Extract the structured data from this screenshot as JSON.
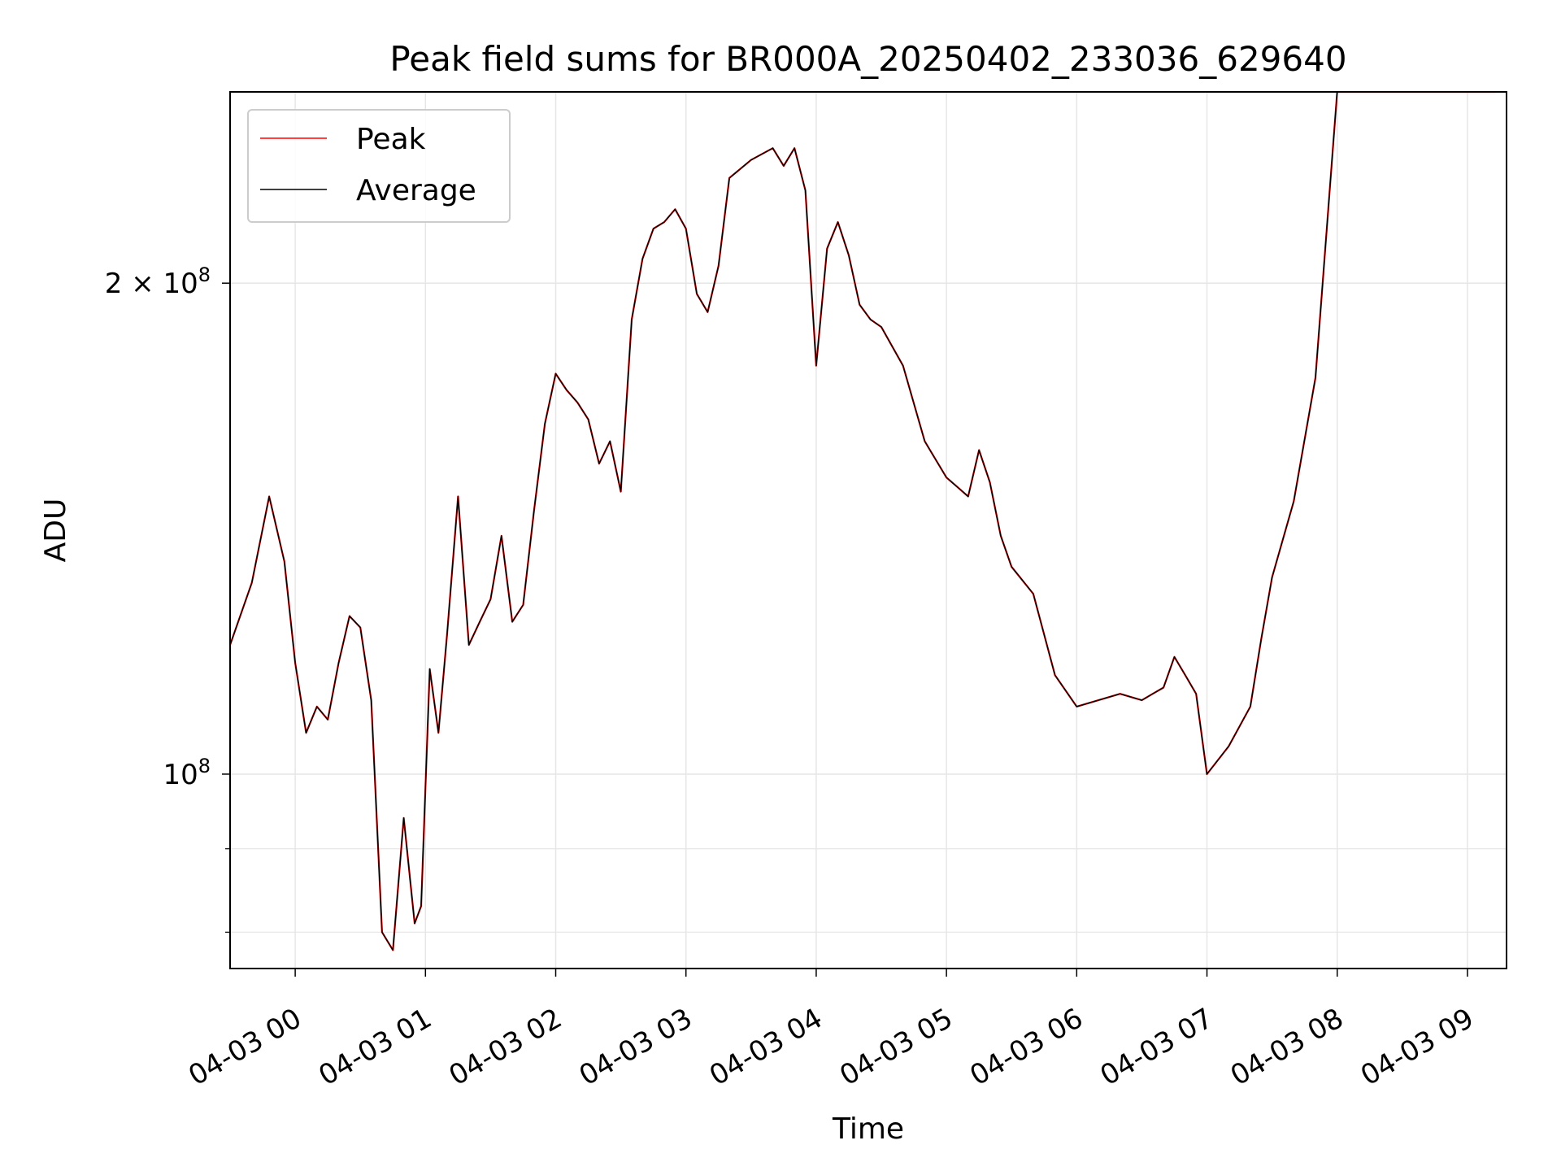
{
  "chart_data": {
    "type": "line",
    "title": "Peak field sums for BR000A_20250402_233036_629640",
    "xlabel": "Time",
    "ylabel": "ADU",
    "yscale": "log",
    "ylim": [
      76000000,
      262000000
    ],
    "xlim": [
      "04-02 23:30",
      "04-03 09:18"
    ],
    "xticks": [
      "04-03 00",
      "04-03 01",
      "04-03 02",
      "04-03 03",
      "04-03 04",
      "04-03 05",
      "04-03 06",
      "04-03 07",
      "04-03 08",
      "04-03 09"
    ],
    "yticks": [
      {
        "value": 100000000,
        "label_base": "10",
        "label_exp": "8"
      },
      {
        "value": 200000000,
        "label_base": "2 × 10",
        "label_exp": "8"
      }
    ],
    "grid": true,
    "legend_position": "upper-left",
    "colors": {
      "peak": "#ff0000",
      "average": "#000000"
    },
    "series": [
      {
        "name": "Peak",
        "x": [
          "23:30",
          "23:40",
          "23:48",
          "23:55",
          "00:00",
          "00:05",
          "00:10",
          "00:15",
          "00:20",
          "00:25",
          "00:30",
          "00:35",
          "00:40",
          "00:45",
          "00:50",
          "00:55",
          "00:58",
          "01:02",
          "01:06",
          "01:10",
          "01:15",
          "01:20",
          "01:25",
          "01:30",
          "01:35",
          "01:40",
          "01:45",
          "01:50",
          "01:55",
          "02:00",
          "02:05",
          "02:10",
          "02:15",
          "02:20",
          "02:25",
          "02:30",
          "02:35",
          "02:40",
          "02:45",
          "02:50",
          "02:55",
          "03:00",
          "03:05",
          "03:10",
          "03:15",
          "03:20",
          "03:30",
          "03:40",
          "03:45",
          "03:50",
          "03:55",
          "04:00",
          "04:05",
          "04:10",
          "04:15",
          "04:20",
          "04:25",
          "04:30",
          "04:40",
          "04:50",
          "05:00",
          "05:05",
          "05:10",
          "05:15",
          "05:20",
          "05:25",
          "05:30",
          "05:40",
          "05:50",
          "06:00",
          "06:10",
          "06:20",
          "06:30",
          "06:35",
          "06:40",
          "06:45",
          "06:50",
          "06:55",
          "07:00",
          "07:10",
          "07:20",
          "07:25",
          "07:30",
          "07:40",
          "07:50",
          "08:00",
          "08:10",
          "08:15",
          "08:20",
          "08:25",
          "08:30",
          "08:35",
          "08:40",
          "08:45",
          "08:50",
          "08:55",
          "09:00",
          "09:05",
          "09:10",
          "09:13"
        ],
        "y": [
          120000000,
          131000000,
          148000000,
          135000000,
          117000000,
          106000000,
          110000000,
          108000000,
          117000000,
          125000000,
          123000000,
          111000000,
          80000000,
          78000000,
          94000000,
          81000000,
          83000000,
          116000000,
          106000000,
          122000000,
          148000000,
          120000000,
          124000000,
          128000000,
          140000000,
          124000000,
          127000000,
          145000000,
          164000000,
          176000000,
          172000000,
          169000000,
          165000000,
          155000000,
          160000000,
          149000000,
          190000000,
          207000000,
          216000000,
          218000000,
          222000000,
          216000000,
          197000000,
          192000000,
          205000000,
          232000000,
          238000000,
          242000000,
          236000000,
          242000000,
          228000000,
          178000000,
          210000000,
          218000000,
          208000000,
          194000000,
          190000000,
          188000000,
          178000000,
          160000000,
          152000000,
          150000000,
          148000000,
          158000000,
          151000000,
          140000000,
          134000000,
          129000000,
          115000000,
          110000000,
          111000000,
          112000000,
          111000000,
          112000000,
          113000000,
          118000000,
          115000000,
          112000000,
          100000000,
          104000000,
          110000000,
          121000000,
          132000000,
          147000000,
          175000000,
          262000000,
          262000000,
          262000000,
          262000000,
          262000000,
          262000000,
          262000000,
          262000000,
          262000000,
          262000000,
          262000000,
          262000000,
          262000000,
          262000000,
          262000000
        ]
      },
      {
        "name": "Average",
        "x": [
          "23:30",
          "23:40",
          "23:48",
          "23:55",
          "00:00",
          "00:05",
          "00:10",
          "00:15",
          "00:20",
          "00:25",
          "00:30",
          "00:35",
          "00:40",
          "00:45",
          "00:50",
          "00:55",
          "00:58",
          "01:02",
          "01:06",
          "01:10",
          "01:15",
          "01:20",
          "01:25",
          "01:30",
          "01:35",
          "01:40",
          "01:45",
          "01:50",
          "01:55",
          "02:00",
          "02:05",
          "02:10",
          "02:15",
          "02:20",
          "02:25",
          "02:30",
          "02:35",
          "02:40",
          "02:45",
          "02:50",
          "02:55",
          "03:00",
          "03:05",
          "03:10",
          "03:15",
          "03:20",
          "03:30",
          "03:40",
          "03:45",
          "03:50",
          "03:55",
          "04:00",
          "04:05",
          "04:10",
          "04:15",
          "04:20",
          "04:25",
          "04:30",
          "04:40",
          "04:50",
          "05:00",
          "05:05",
          "05:10",
          "05:15",
          "05:20",
          "05:25",
          "05:30",
          "05:40",
          "05:50",
          "06:00",
          "06:10",
          "06:20",
          "06:30",
          "06:35",
          "06:40",
          "06:45",
          "06:50",
          "06:55",
          "07:00",
          "07:10",
          "07:20",
          "07:25",
          "07:30",
          "07:40",
          "07:50",
          "08:00",
          "08:10",
          "08:15",
          "08:20",
          "08:25",
          "08:30",
          "08:35",
          "08:40",
          "08:45",
          "08:50",
          "08:55",
          "09:00",
          "09:05",
          "09:10",
          "09:13"
        ],
        "y": [
          120000000,
          131000000,
          148000000,
          135000000,
          117000000,
          106000000,
          110000000,
          108000000,
          117000000,
          125000000,
          123000000,
          111000000,
          80000000,
          78000000,
          94000000,
          81000000,
          83000000,
          116000000,
          106000000,
          122000000,
          148000000,
          120000000,
          124000000,
          128000000,
          140000000,
          124000000,
          127000000,
          145000000,
          164000000,
          176000000,
          172000000,
          169000000,
          165000000,
          155000000,
          160000000,
          149000000,
          190000000,
          207000000,
          216000000,
          218000000,
          222000000,
          216000000,
          197000000,
          192000000,
          205000000,
          232000000,
          238000000,
          242000000,
          236000000,
          242000000,
          228000000,
          178000000,
          210000000,
          218000000,
          208000000,
          194000000,
          190000000,
          188000000,
          178000000,
          160000000,
          152000000,
          150000000,
          148000000,
          158000000,
          151000000,
          140000000,
          134000000,
          129000000,
          115000000,
          110000000,
          111000000,
          112000000,
          111000000,
          112000000,
          113000000,
          118000000,
          115000000,
          112000000,
          100000000,
          104000000,
          110000000,
          121000000,
          132000000,
          147000000,
          175000000,
          262000000,
          262000000,
          262000000,
          262000000,
          262000000,
          262000000,
          262000000,
          262000000,
          262000000,
          262000000,
          262000000,
          262000000,
          262000000,
          262000000,
          262000000
        ]
      }
    ],
    "legend": [
      {
        "label": "Peak",
        "color": "#ff0000"
      },
      {
        "label": "Average",
        "color": "#000000"
      }
    ]
  }
}
